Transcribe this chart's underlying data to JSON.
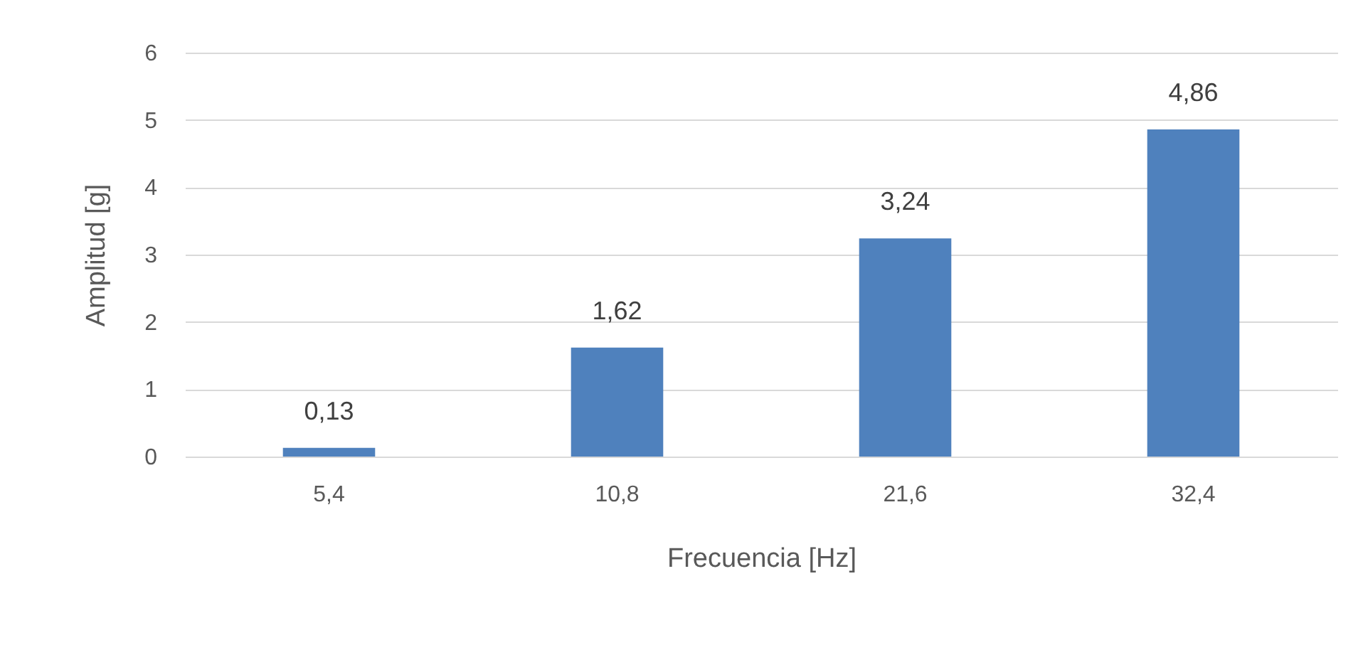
{
  "chart_data": {
    "type": "bar",
    "xlabel": "Frecuencia [Hz]",
    "ylabel": "Amplitud [g]",
    "categories": [
      "5,4",
      "10,8",
      "21,6",
      "32,4"
    ],
    "values": [
      0.13,
      1.62,
      3.24,
      4.86
    ],
    "value_labels": [
      "0,13",
      "1,62",
      "3,24",
      "4,86"
    ],
    "color": "#4f81bd",
    "ylim": [
      0,
      6
    ],
    "yticks": [
      0,
      1,
      2,
      3,
      4,
      5,
      6
    ],
    "grid": "y"
  }
}
